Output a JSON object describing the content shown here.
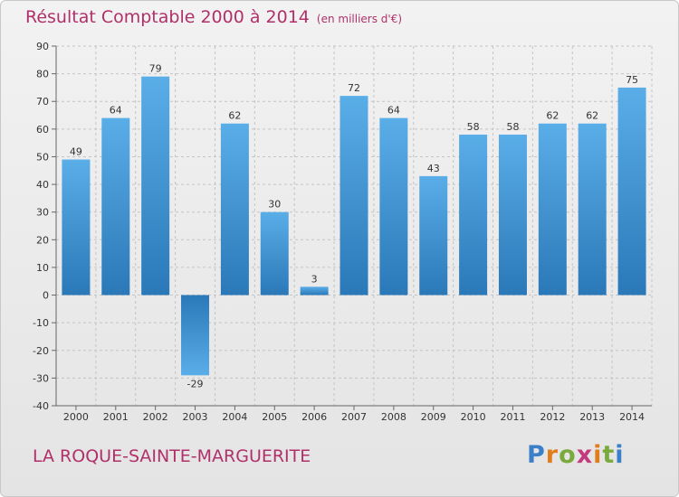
{
  "header": {
    "title": "Résultat Comptable 2000 à 2014",
    "unit": "(en milliers d'€)"
  },
  "footer": {
    "commune": "LA ROQUE-SAINTE-MARGUERITE",
    "logo": "Proxiti"
  },
  "colors": {
    "title": "#b0306a",
    "bar_light": "#5aaee8",
    "bar_dark": "#2a78b8"
  },
  "chart_data": {
    "type": "bar",
    "title": "Résultat Comptable 2000 à 2014",
    "subtitle": "(en milliers d'€)",
    "categories": [
      "2000",
      "2001",
      "2002",
      "2003",
      "2004",
      "2005",
      "2006",
      "2007",
      "2008",
      "2009",
      "2010",
      "2011",
      "2012",
      "2013",
      "2014"
    ],
    "values": [
      49,
      64,
      79,
      -29,
      62,
      30,
      3,
      72,
      64,
      43,
      58,
      58,
      62,
      62,
      75
    ],
    "ylim": [
      -40,
      90
    ],
    "yticks": [
      -40,
      -30,
      -20,
      -10,
      0,
      10,
      20,
      30,
      40,
      50,
      60,
      70,
      80,
      90
    ],
    "grid": true,
    "legend": "none"
  }
}
